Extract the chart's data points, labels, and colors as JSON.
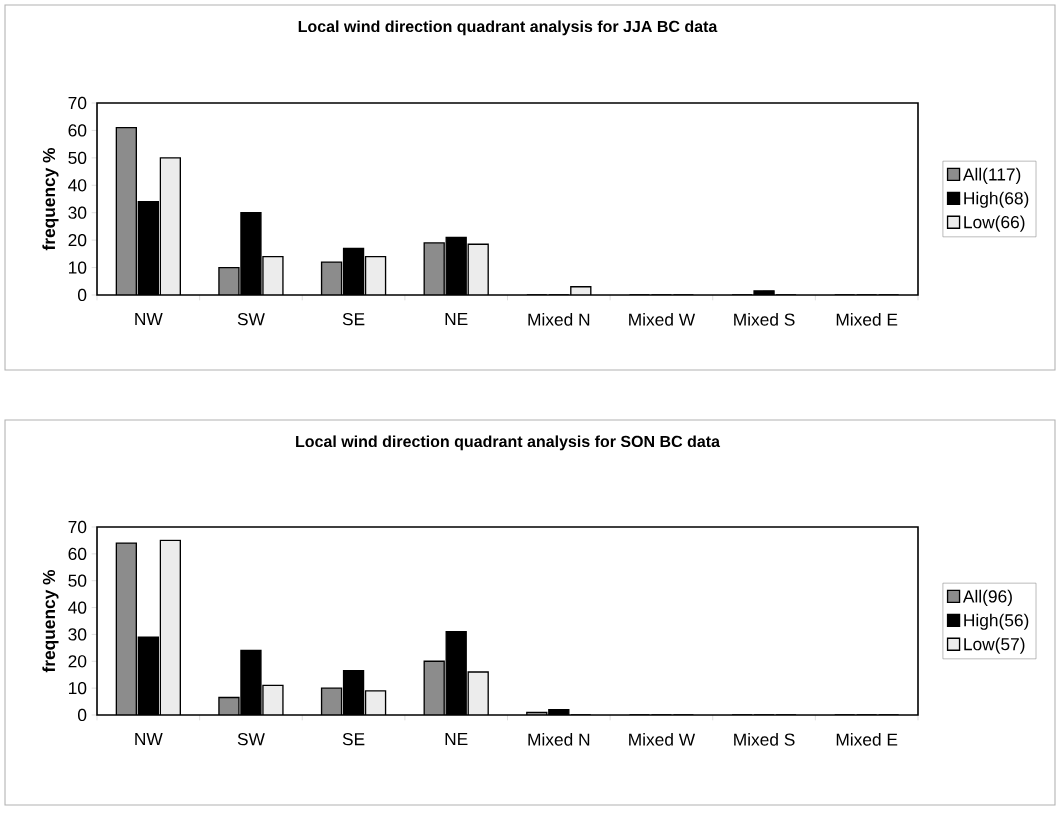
{
  "chart_data": [
    {
      "type": "bar",
      "title": "Local wind direction quadrant analysis for JJA BC data",
      "ylabel": "frequency %",
      "categories": [
        "NW",
        "SW",
        "SE",
        "NE",
        "Mixed N",
        "Mixed W",
        "Mixed S",
        "Mixed E"
      ],
      "ylim": [
        0,
        70
      ],
      "yticks": [
        0,
        10,
        20,
        30,
        40,
        50,
        60,
        70
      ],
      "legend": "right",
      "series": [
        {
          "name": "All(117)",
          "color": "#8c8c8c",
          "values": [
            61,
            10,
            12,
            19,
            0,
            0,
            0,
            0
          ]
        },
        {
          "name": "High(68)",
          "color": "#000000",
          "values": [
            34,
            30,
            17,
            21,
            0,
            0,
            1.5,
            0
          ]
        },
        {
          "name": "Low(66)",
          "color": "#ececec",
          "values": [
            50,
            14,
            14,
            18.5,
            3,
            0,
            0,
            0
          ]
        }
      ]
    },
    {
      "type": "bar",
      "title": "Local wind direction quadrant analysis for SON BC data",
      "ylabel": "frequency %",
      "categories": [
        "NW",
        "SW",
        "SE",
        "NE",
        "Mixed N",
        "Mixed W",
        "Mixed S",
        "Mixed E"
      ],
      "ylim": [
        0,
        70
      ],
      "yticks": [
        0,
        10,
        20,
        30,
        40,
        50,
        60,
        70
      ],
      "legend": "right",
      "series": [
        {
          "name": "All(96)",
          "color": "#8c8c8c",
          "values": [
            64,
            6.5,
            10,
            20,
            1,
            0,
            0,
            0
          ]
        },
        {
          "name": "High(56)",
          "color": "#000000",
          "values": [
            29,
            24,
            16.5,
            31,
            2,
            0,
            0,
            0
          ]
        },
        {
          "name": "Low(57)",
          "color": "#ececec",
          "values": [
            65,
            11,
            9,
            16,
            0,
            0,
            0,
            0
          ]
        }
      ]
    }
  ]
}
